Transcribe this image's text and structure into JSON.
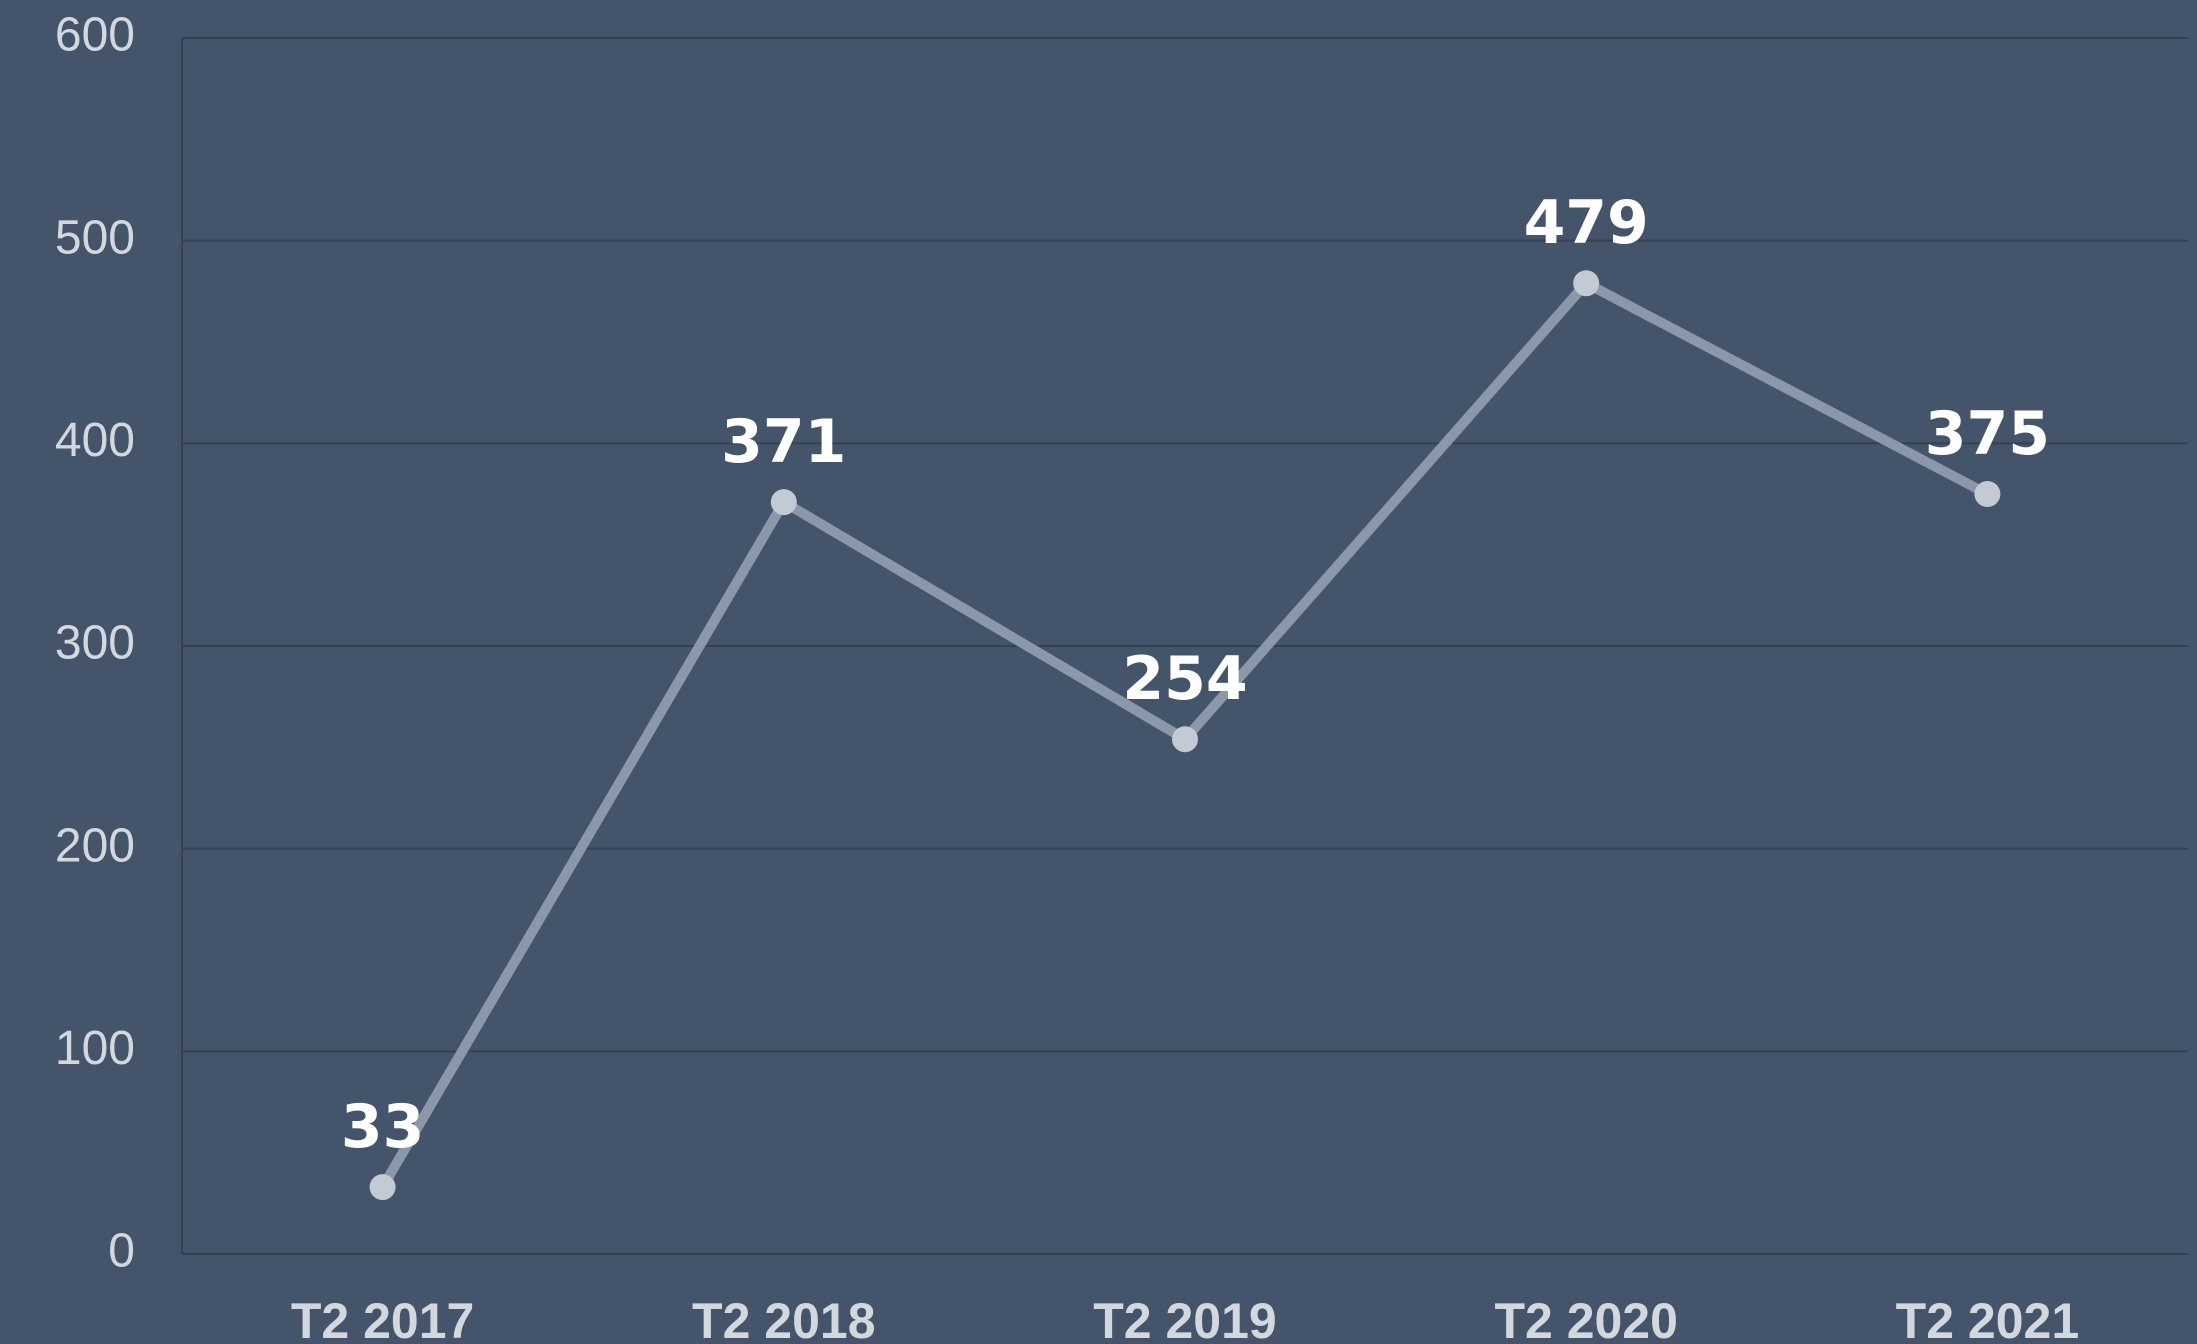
{
  "chart_data": {
    "type": "line",
    "categories": [
      "T2 2017",
      "T2 2018",
      "T2 2019",
      "T2 2020",
      "T2 2021"
    ],
    "values": [
      33,
      371,
      254,
      479,
      375
    ],
    "color": "#8a98aa",
    "marker_color": "#c3cad3",
    "ylim": [
      0,
      600
    ],
    "yticks": [
      0,
      100,
      200,
      300,
      400,
      500,
      600
    ],
    "grid": true
  }
}
